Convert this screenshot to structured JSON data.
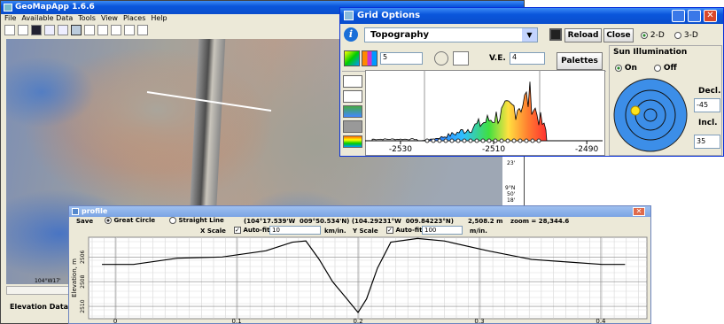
{
  "main_window": {
    "title": "GeoMapApp 1.6.6",
    "menu": [
      "File",
      "Available Data",
      "Tools",
      "View",
      "Places",
      "Help"
    ],
    "map_labels": [
      "23'",
      "9°N",
      "50'",
      "18'",
      "104°W17'"
    ],
    "status": "Elevation Data"
  },
  "grid_options": {
    "title": "Grid Options",
    "grid": "Topography",
    "reload": "Reload",
    "close": "Close",
    "view_modes": [
      "2-D",
      "3-D"
    ],
    "contour_interval": "5",
    "ve_label": "V.E.",
    "ve": "4",
    "palettes": "Palettes",
    "histogram": {
      "type": "histogram",
      "xlim": [
        -2537.6,
        -2486.6
      ],
      "xticks": [
        -2530,
        -2510,
        -2490
      ]
    },
    "sun": {
      "title": "Sun Illumination",
      "modes": [
        "On",
        "Off"
      ],
      "decl_label": "Decl.",
      "decl": "-45",
      "incl_label": "Incl.",
      "incl": "35"
    }
  },
  "profile": {
    "title": "profile",
    "save": "Save",
    "path_modes": [
      "Great Circle",
      "Straight Line"
    ],
    "coordinates": "(104°17.539'W  009°50.534'N) (104.29231°W  009.84223°N)",
    "length": "2,508.2 m",
    "zoom": "zoom = 28,344.6",
    "x_scale": "X Scale",
    "x_auto": "Auto-fit",
    "x_value": "10",
    "x_unit": "km/in.",
    "y_scale": "Y Scale",
    "y_auto": "Auto-fit",
    "y_value": "100",
    "y_unit": "m/in.",
    "chart": {
      "type": "line",
      "ylabel": "Elevation, m",
      "color": "#000000",
      "x": [
        -0.011,
        0.015,
        0.051,
        0.088,
        0.124,
        0.146,
        0.157,
        0.168,
        0.179,
        0.19,
        0.2,
        0.207,
        0.216,
        0.227,
        0.249,
        0.271,
        0.307,
        0.343,
        0.372,
        0.401,
        0.42
      ],
      "values": [
        2506.6,
        2506.6,
        2506.1,
        2506,
        2505.5,
        2504.8,
        2504.7,
        2506.2,
        2508,
        2509.3,
        2510.5,
        2509.4,
        2506.9,
        2504.8,
        2504.5,
        2504.7,
        2505.5,
        2506.2,
        2506.4,
        2506.6,
        2506.6
      ],
      "xlim": [
        -0.022,
        0.438
      ],
      "xticks": [
        0,
        0.1,
        0.2,
        0.3,
        0.4
      ],
      "ylim": [
        2511,
        2504.4
      ],
      "yticks": [
        2506,
        2508,
        2510
      ],
      "grid": true
    }
  }
}
